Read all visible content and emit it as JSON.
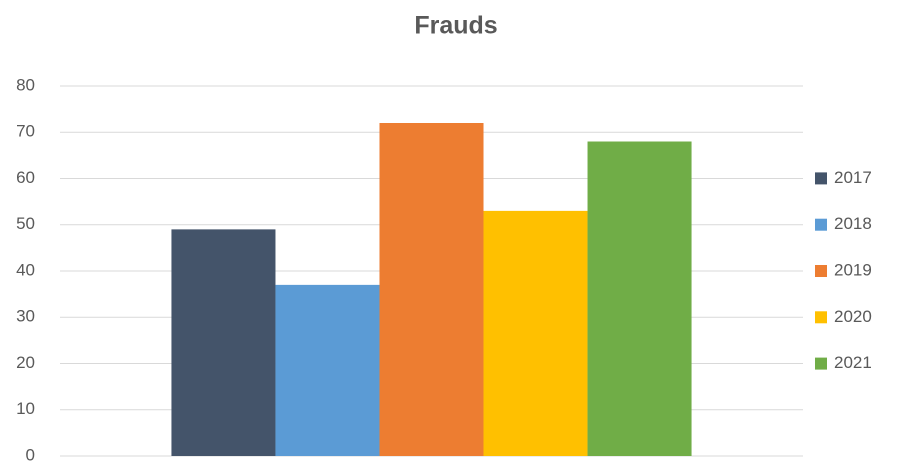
{
  "chart_data": {
    "type": "bar",
    "title": "Frauds",
    "categories": [
      null
    ],
    "series": [
      {
        "name": "2017",
        "color": "#44546a",
        "values": [
          49
        ]
      },
      {
        "name": "2018",
        "color": "#5b9bd5",
        "values": [
          37
        ]
      },
      {
        "name": "2019",
        "color": "#ed7d31",
        "values": [
          72
        ]
      },
      {
        "name": "2020",
        "color": "#ffc000",
        "values": [
          53
        ]
      },
      {
        "name": "2021",
        "color": "#70ad47",
        "values": [
          68
        ]
      }
    ],
    "ylim": [
      0,
      80
    ],
    "yticks": [
      0,
      10,
      20,
      30,
      40,
      50,
      60,
      70,
      80
    ],
    "grid": true,
    "legend": "right"
  }
}
